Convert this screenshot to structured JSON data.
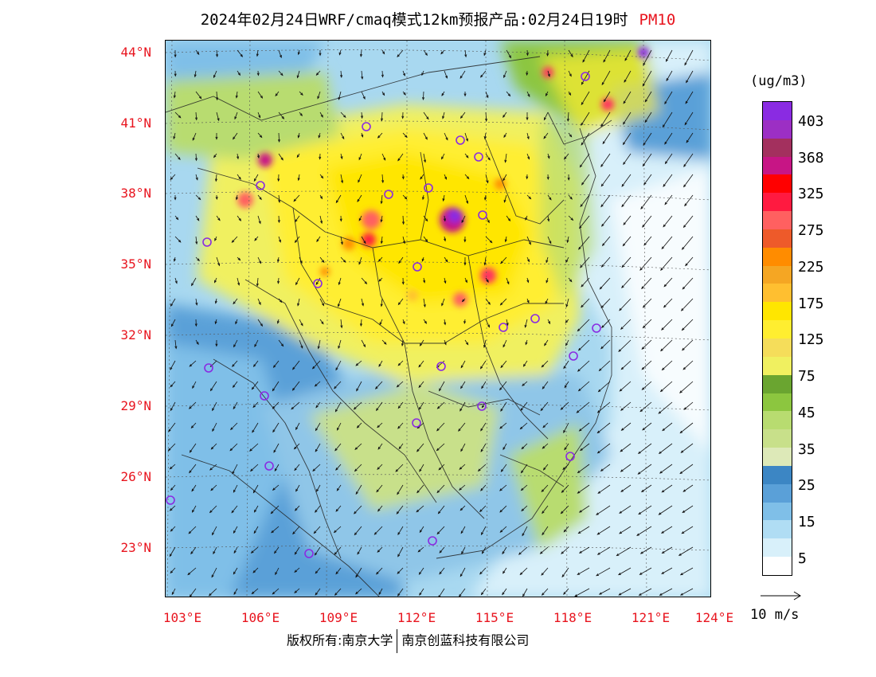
{
  "header": {
    "title": "2024年02月24日WRF/cmaq模式12km预报产品:02月24日19时",
    "pollutant": "PM10"
  },
  "axes": {
    "lat_labels": [
      "44°N",
      "41°N",
      "38°N",
      "35°N",
      "32°N",
      "29°N",
      "26°N",
      "23°N"
    ],
    "lon_labels": [
      "103°E",
      "106°E",
      "109°E",
      "112°E",
      "115°E",
      "118°E",
      "121°E",
      "124°E"
    ]
  },
  "colorbar": {
    "unit": "(ug/m3)",
    "labels": [
      "403",
      "368",
      "325",
      "275",
      "225",
      "175",
      "125",
      "75",
      "45",
      "35",
      "25",
      "15",
      "5"
    ],
    "colors": [
      "#8a2be2",
      "#9c2fc4",
      "#a3305e",
      "#c71585",
      "#ff0000",
      "#ff1a40",
      "#ff6060",
      "#ee5a2a",
      "#ff8c00",
      "#f5a623",
      "#ffbf30",
      "#ffe600",
      "#ffee30",
      "#f5dd5a",
      "#f0f060",
      "#6aa530",
      "#8cc63f",
      "#b8dc70",
      "#c8e08a",
      "#dde9b8",
      "#3c86c4",
      "#5aa0d8",
      "#7fbfe8",
      "#b0ddf4",
      "#d8f0fa",
      "#ffffff"
    ]
  },
  "vector_reference": "10 m/s",
  "footer": {
    "copyright": "版权所有:南京大学",
    "company": "南京创蓝科技有限公司"
  }
}
